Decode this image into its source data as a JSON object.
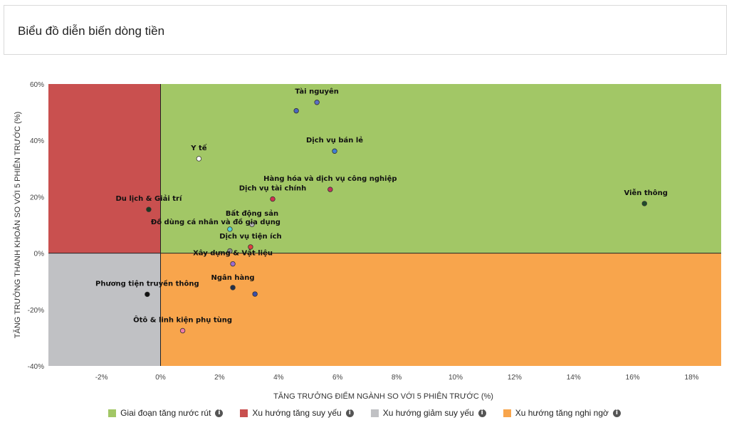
{
  "header": {
    "title": "Biểu đồ diễn biến dòng tiền"
  },
  "chart_data": {
    "type": "scatter",
    "title": "",
    "xlabel": "TĂNG TRƯỞNG ĐIỂM NGÀNH SO VỚI 5 PHIÊN TRƯỚC (%)",
    "ylabel": "TĂNG TRƯỞNG THANH KHOẢN SO VỚI 5 PHIÊN TRƯỚC (%)",
    "xlim": [
      -3.8,
      19
    ],
    "ylim": [
      -40,
      60
    ],
    "x_ticks": [
      -2,
      0,
      2,
      4,
      6,
      8,
      10,
      12,
      14,
      16,
      18
    ],
    "y_ticks": [
      -40,
      -20,
      0,
      20,
      40,
      60
    ],
    "x_tick_labels": [
      "-2%",
      "0%",
      "2%",
      "4%",
      "6%",
      "8%",
      "10%",
      "12%",
      "14%",
      "16%",
      "18%"
    ],
    "y_tick_labels": [
      "-40%",
      "-20%",
      "0%",
      "20%",
      "40%",
      "60%"
    ],
    "quadrants": [
      {
        "name": "Giai đoạn tăng nước rút",
        "color": "#a2c766",
        "x_range": [
          0,
          19
        ],
        "y_range": [
          0,
          60
        ]
      },
      {
        "name": "Xu hướng tăng suy yếu",
        "color": "#c9504f",
        "x_range": [
          -3.8,
          0
        ],
        "y_range": [
          0,
          60
        ]
      },
      {
        "name": "Xu hướng giảm suy yếu",
        "color": "#c0c1c4",
        "x_range": [
          -3.8,
          0
        ],
        "y_range": [
          -40,
          0
        ]
      },
      {
        "name": "Xu hướng tăng nghi ngờ",
        "color": "#f8a54c",
        "x_range": [
          0,
          19
        ],
        "y_range": [
          -40,
          0
        ]
      }
    ],
    "points": [
      {
        "label": "Tài nguyên",
        "x": 5.3,
        "y": 53.5,
        "color": "#5a6fc4"
      },
      {
        "label": "",
        "x": 4.6,
        "y": 50.5,
        "color": "#4a67c0"
      },
      {
        "label": "Dịch vụ bán lẻ",
        "x": 5.9,
        "y": 36.2,
        "color": "#3f7fd4"
      },
      {
        "label": "Y tế",
        "x": 1.3,
        "y": 33.5,
        "color": "#ffffff"
      },
      {
        "label": "Hàng hóa và dịch vụ công nghiệp",
        "x": 5.75,
        "y": 22.6,
        "color": "#c2335c"
      },
      {
        "label": "Dịch vụ tài chính",
        "x": 3.8,
        "y": 19.2,
        "color": "#d0304f"
      },
      {
        "label": "Viễn thông",
        "x": 16.4,
        "y": 17.6,
        "color": "#1f4d2a"
      },
      {
        "label": "Du lịch & Giải trí",
        "x": -0.4,
        "y": 15.5,
        "color": "#1b3a1f"
      },
      {
        "label": "Bất động sản",
        "x": 3.1,
        "y": 10.2,
        "color": "#b5b5b5"
      },
      {
        "label": "Đồ dùng cá nhân và đồ gia dụng",
        "x": 2.35,
        "y": 8.5,
        "color": "#4fd0e0"
      },
      {
        "label": "Dịch vụ tiện ích",
        "x": 3.05,
        "y": 2.2,
        "color": "#e04040"
      },
      {
        "label": "",
        "x": 2.35,
        "y": 0.8,
        "color": "#8a8a8a"
      },
      {
        "label": "Xây dựng & Vật liệu",
        "x": 2.45,
        "y": -3.8,
        "color": "#9b6ad0"
      },
      {
        "label": "Ngân hàng",
        "x": 2.45,
        "y": -12.2,
        "color": "#24304a"
      },
      {
        "label": "",
        "x": 3.2,
        "y": -14.5,
        "color": "#3c4fa8"
      },
      {
        "label": "Phương tiện truyền thông",
        "x": -0.45,
        "y": -14.6,
        "color": "#111111"
      },
      {
        "label": "Ôtô & linh kiện phụ tùng",
        "x": 0.75,
        "y": -27.5,
        "color": "#f07aa8"
      }
    ],
    "legend_placement": "bottom",
    "grid": false
  },
  "legend": [
    {
      "label": "Giai đoạn tăng nước rút",
      "color": "#a2c766",
      "icon": "info-icon"
    },
    {
      "label": "Xu hướng tăng suy yếu",
      "color": "#c9504f",
      "icon": "info-icon"
    },
    {
      "label": "Xu hướng giảm suy yếu",
      "color": "#c0c1c4",
      "icon": "info-icon"
    },
    {
      "label": "Xu hướng tăng nghi ngờ",
      "color": "#f8a54c",
      "icon": "info-icon"
    }
  ]
}
